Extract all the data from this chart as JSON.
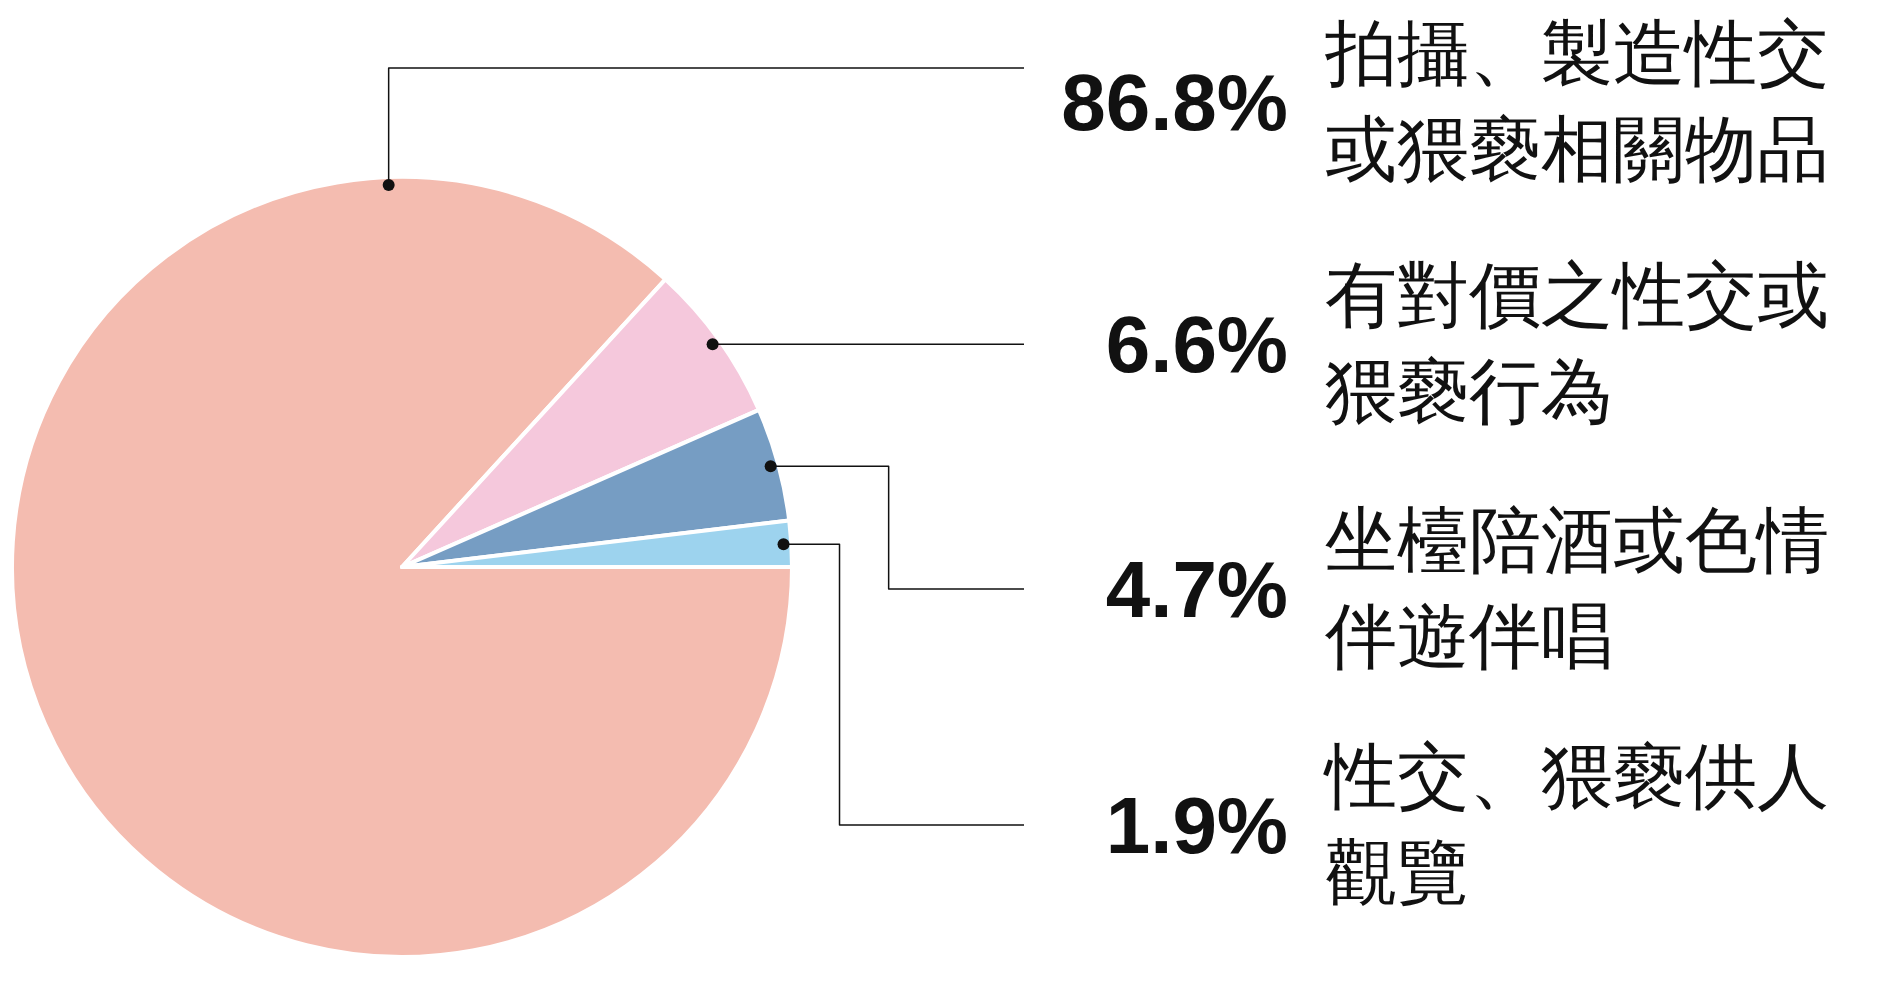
{
  "chart_data": {
    "type": "pie",
    "categories": [
      "拍攝、製造性交或猥褻相關物品",
      "有對價之性交或猥褻行為",
      "坐檯陪酒或色情伴遊伴唱",
      "性交、猥褻供人觀覽"
    ],
    "values": [
      86.8,
      6.6,
      4.7,
      1.9
    ],
    "value_labels": [
      "86.8%",
      "6.6%",
      "4.7%",
      "1.9%"
    ],
    "colors": [
      "#f4bcb0",
      "#f5c8dc",
      "#769dc3",
      "#9dd3ee"
    ]
  }
}
